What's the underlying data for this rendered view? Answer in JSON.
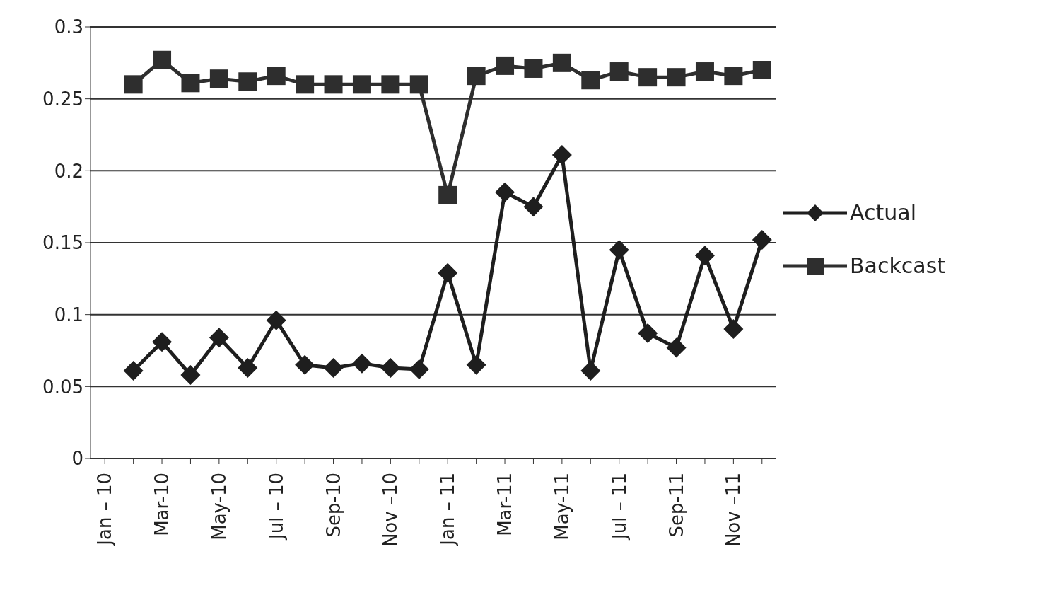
{
  "chart_data": {
    "type": "line",
    "categories": [
      "Jan – 10",
      null,
      "Mar-10",
      null,
      "May-10",
      null,
      "Jul – 10",
      null,
      "Sep-10",
      null,
      "Nov –10",
      null,
      "Jan – 11",
      null,
      "Mar-11",
      null,
      "May-11",
      null,
      "Jul – 11",
      null,
      "Sep-11",
      null,
      "Nov –11",
      null
    ],
    "series": [
      {
        "name": "Actual",
        "color": "#1e1e1e",
        "marker": "diamond",
        "values": [
          null,
          0.061,
          0.081,
          0.058,
          0.084,
          0.063,
          0.096,
          0.065,
          0.063,
          0.066,
          0.063,
          0.062,
          0.129,
          0.065,
          0.185,
          0.175,
          0.211,
          0.061,
          0.145,
          0.087,
          0.077,
          0.141,
          0.09,
          0.152
        ]
      },
      {
        "name": "Backcast",
        "color": "#2e2e2e",
        "marker": "square",
        "values": [
          null,
          0.26,
          0.277,
          0.261,
          0.264,
          0.262,
          0.266,
          0.26,
          0.26,
          0.26,
          0.26,
          0.26,
          0.183,
          0.266,
          0.273,
          0.271,
          0.275,
          0.263,
          0.269,
          0.265,
          0.265,
          0.269,
          0.266,
          0.27
        ]
      }
    ],
    "ylim": [
      0,
      0.3
    ],
    "yticks": [
      0,
      0.05,
      0.1,
      0.15,
      0.2,
      0.25,
      0.3
    ],
    "grid": "y",
    "legend": "right",
    "line_style": "solid"
  }
}
